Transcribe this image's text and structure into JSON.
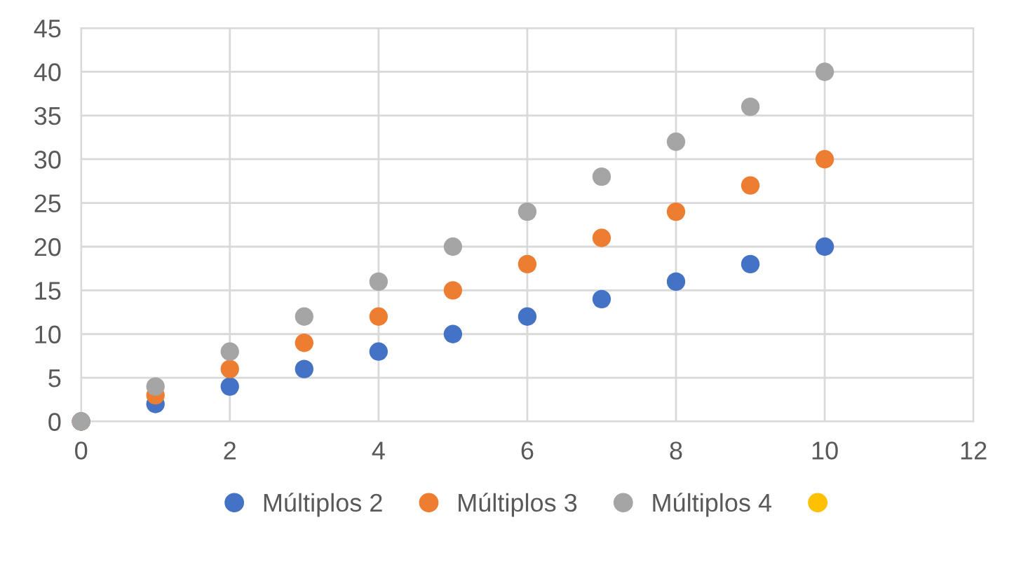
{
  "chart_data": {
    "type": "scatter",
    "x": [
      0,
      1,
      2,
      3,
      4,
      5,
      6,
      7,
      8,
      9,
      10
    ],
    "series": [
      {
        "name": "Múltiplos 2",
        "color": "#4472c4",
        "values": [
          0,
          2,
          4,
          6,
          8,
          10,
          12,
          14,
          16,
          18,
          20
        ]
      },
      {
        "name": "Múltiplos 3",
        "color": "#ed7d31",
        "values": [
          0,
          3,
          6,
          9,
          12,
          15,
          18,
          21,
          24,
          27,
          30
        ]
      },
      {
        "name": "Múltiplos 4",
        "color": "#a5a5a5",
        "values": [
          0,
          4,
          8,
          12,
          16,
          20,
          24,
          28,
          32,
          36,
          40
        ]
      },
      {
        "color": "#ffc000",
        "values": [
          null,
          null,
          null,
          null,
          null,
          null,
          null,
          null,
          null,
          null,
          null
        ]
      }
    ],
    "xlim": [
      0,
      12
    ],
    "xticks": [
      0,
      2,
      4,
      6,
      8,
      10,
      12
    ],
    "ylim": [
      0,
      45
    ],
    "yticks": [
      0,
      5,
      10,
      15,
      20,
      25,
      30,
      35,
      40,
      45
    ],
    "grid": true,
    "legend": "bottom",
    "marker": "circle"
  }
}
